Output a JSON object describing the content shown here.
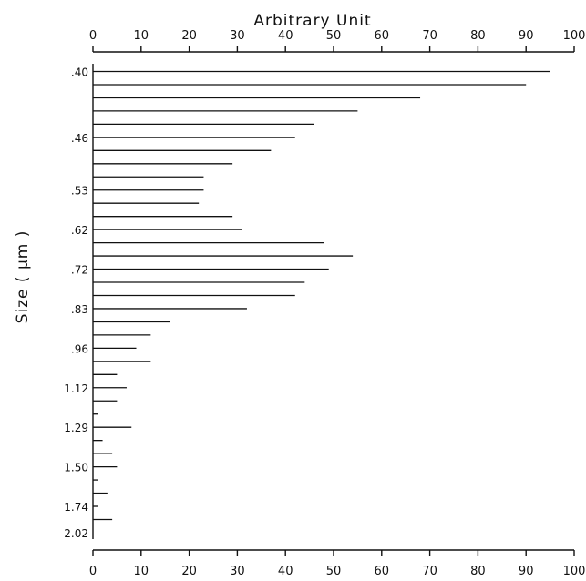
{
  "chart_data": {
    "type": "bar",
    "orientation": "horizontal",
    "title": "Arbitrary Unit",
    "ylabel": "Size ( μm )",
    "xlim": [
      0,
      100
    ],
    "x_ticks": [
      "0",
      "10",
      "20",
      "30",
      "40",
      "50",
      "60",
      "70",
      "80",
      "90",
      "100"
    ],
    "y_tick_labels": [
      ".40",
      ".46",
      ".53",
      ".62",
      ".72",
      ".83",
      ".96",
      "1.12",
      "1.29",
      "1.50",
      "1.74",
      "2.02"
    ],
    "y_tick_rows": [
      0,
      5,
      9,
      12,
      15,
      18,
      21,
      24,
      27,
      30,
      33,
      35
    ],
    "values": [
      95,
      90,
      68,
      55,
      46,
      42,
      37,
      29,
      23,
      23,
      22,
      29,
      31,
      48,
      54,
      49,
      44,
      42,
      32,
      16,
      12,
      9,
      12,
      5,
      7,
      5,
      1,
      8,
      2,
      4,
      5,
      1,
      3,
      1,
      4
    ],
    "grid": false
  }
}
